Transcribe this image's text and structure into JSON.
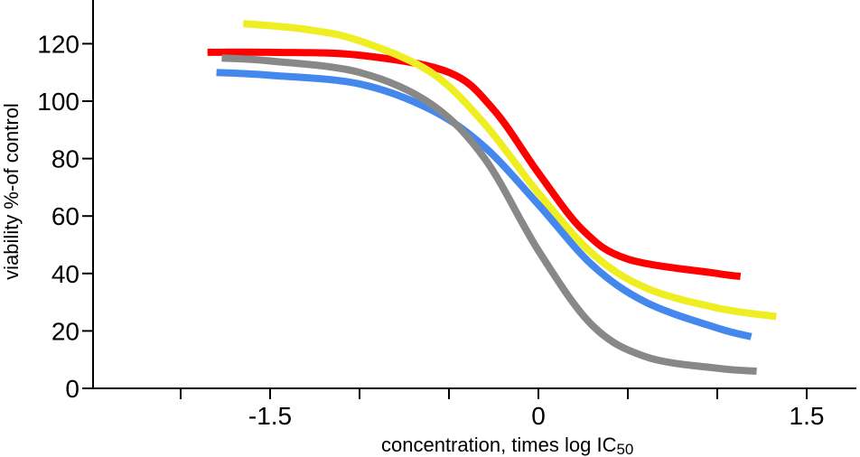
{
  "chart_data": {
    "type": "line",
    "xlabel": "concentration, times log IC",
    "xlabel_sub": "50",
    "ylabel": "viability %-of control",
    "xlim": [
      -2.5,
      1.8
    ],
    "ylim": [
      0,
      130
    ],
    "x_ticks": [
      -2.0,
      -1.5,
      -1.0,
      -0.5,
      0,
      0.5,
      1.0,
      1.5
    ],
    "x_tick_labels": [
      {
        "value": -1.5,
        "label": "-1.5"
      },
      {
        "value": 0,
        "label": "0"
      },
      {
        "value": 1.5,
        "label": "1.5"
      }
    ],
    "y_ticks": [
      {
        "value": 0,
        "label": "0"
      },
      {
        "value": 20,
        "label": "20"
      },
      {
        "value": 40,
        "label": "40"
      },
      {
        "value": 60,
        "label": "60"
      },
      {
        "value": 80,
        "label": "80"
      },
      {
        "value": 100,
        "label": "100"
      },
      {
        "value": 120,
        "label": "120"
      }
    ],
    "grid": false,
    "series": [
      {
        "color": "#ff0000",
        "x": [
          -1.85,
          -1.5,
          -1.0,
          -0.5,
          -0.25,
          0.0,
          0.25,
          0.5,
          1.0,
          1.13
        ],
        "y": [
          117,
          117,
          116,
          110,
          97,
          75,
          55,
          45,
          40,
          39
        ]
      },
      {
        "color": "#eeee22",
        "x": [
          -1.65,
          -1.3,
          -1.0,
          -0.6,
          -0.3,
          0.0,
          0.3,
          0.6,
          1.0,
          1.33
        ],
        "y": [
          127,
          125,
          121,
          110,
          92,
          68,
          47,
          35,
          28,
          25
        ]
      },
      {
        "color": "#4488ee",
        "x": [
          -1.8,
          -1.5,
          -1.0,
          -0.6,
          -0.3,
          0.0,
          0.3,
          0.6,
          1.0,
          1.19
        ],
        "y": [
          110,
          109,
          106,
          97,
          84,
          64,
          43,
          30,
          21,
          18
        ]
      },
      {
        "color": "#888888",
        "x": [
          -1.77,
          -1.5,
          -1.0,
          -0.6,
          -0.3,
          0.0,
          0.3,
          0.6,
          1.0,
          1.22
        ],
        "y": [
          115,
          114,
          110,
          99,
          80,
          48,
          22,
          11,
          7,
          6
        ]
      }
    ]
  }
}
